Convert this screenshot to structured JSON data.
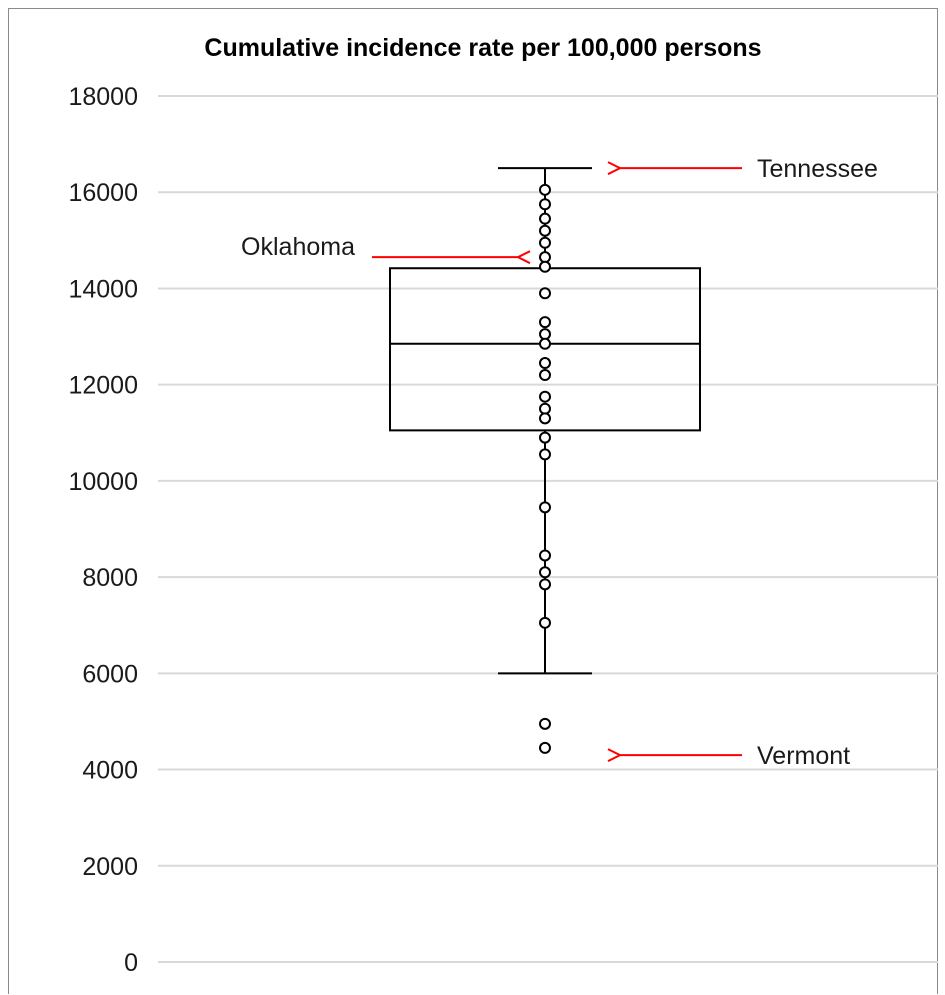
{
  "chart_data": {
    "type": "box",
    "title": "Cumulative incidence rate per 100,000 persons",
    "ylim": [
      0,
      18000
    ],
    "y_ticks": [
      0,
      2000,
      4000,
      6000,
      8000,
      10000,
      12000,
      14000,
      16000,
      18000
    ],
    "grid": true,
    "box": {
      "whisker_low": 6000,
      "q1": 11050,
      "median": 12850,
      "q3": 14420,
      "whisker_high": 16500
    },
    "points": [
      16050,
      15750,
      15450,
      15200,
      14950,
      14650,
      14450,
      13900,
      13300,
      13050,
      12850,
      12450,
      12200,
      11750,
      11500,
      11300,
      10900,
      10550,
      9450,
      8450,
      8100,
      7850,
      7050,
      4950,
      4450
    ],
    "annotations": [
      {
        "label": "Tennessee",
        "value": 16500,
        "side": "right"
      },
      {
        "label": "Oklahoma",
        "value": 14650,
        "side": "left"
      },
      {
        "label": "Vermont",
        "value": 4300,
        "side": "right"
      }
    ],
    "colors": {
      "box": "#000000",
      "grid": "#d9d9d9",
      "arrow": "#ff0000",
      "text": "#1a1a1a"
    }
  }
}
